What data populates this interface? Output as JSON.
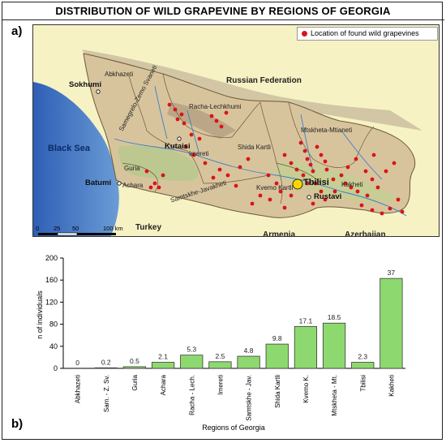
{
  "title": "DISTRIBUTION OF WILD GRAPEVINE BY REGIONS OF GEORGIA",
  "panel_a": "a)",
  "panel_b": "b)",
  "map": {
    "legend": "Location of found wild grapevines",
    "legend_color": "#d9141a",
    "sea": "Black Sea",
    "countries": {
      "russia": "Russian Federation",
      "turkey": "Turkey",
      "armenia": "Armenia",
      "azerbaijan": "Azerbaijan"
    },
    "cities": {
      "sokhumi": "Sokhumi",
      "kutaisi": "Kutaisi",
      "batumi": "Batumi",
      "tbilisi": "Tbilisi",
      "rustavi": "Rustavi"
    },
    "regions": {
      "abkhazeti": "Abkhazeti",
      "samegrelo": "Samegrelo-Zemo Svaneti",
      "racha": "Racha-Lechkhumi",
      "imereti": "Imereti",
      "guria": "Guria",
      "achara": "Achara",
      "shida": "Shida Kartli",
      "mtskheta": "Mtskheta-Mtianeti",
      "kakheti": "Kakheti",
      "kvemo": "Kvemo Kartli",
      "samtskhe": "Samtskhe-Javakheti"
    },
    "scale": {
      "t0": "0",
      "t25": "25",
      "t50": "50",
      "t100": "100 km"
    }
  },
  "chart_data": {
    "type": "bar",
    "categories": [
      "Abkhazeti",
      "Sam. - Z. Sv.",
      "Guria",
      "Achara",
      "Racha - Lech.",
      "Imereti",
      "Samtskhe - Jav.",
      "Shida Kartli",
      "Kvemo K.",
      "Mtskheta - Mt.",
      "Tbilisi",
      "Kakheti"
    ],
    "values": [
      0,
      1,
      3,
      11,
      24,
      12,
      22,
      44,
      76,
      82,
      11,
      163
    ],
    "labels": [
      "0",
      "0.2",
      "0.5",
      "2.1",
      "5.3",
      "2.5",
      "4.8",
      "9.8",
      "17.1",
      "18.5",
      "2.3",
      "37"
    ],
    "ylabel": "n of individuals",
    "xlabel": "Regions of Georgia",
    "ylim": [
      0,
      200
    ],
    "yticks": [
      "0",
      "40",
      "80",
      "120",
      "160",
      "200"
    ],
    "bar_color": "#8ed96f",
    "grid": false
  }
}
